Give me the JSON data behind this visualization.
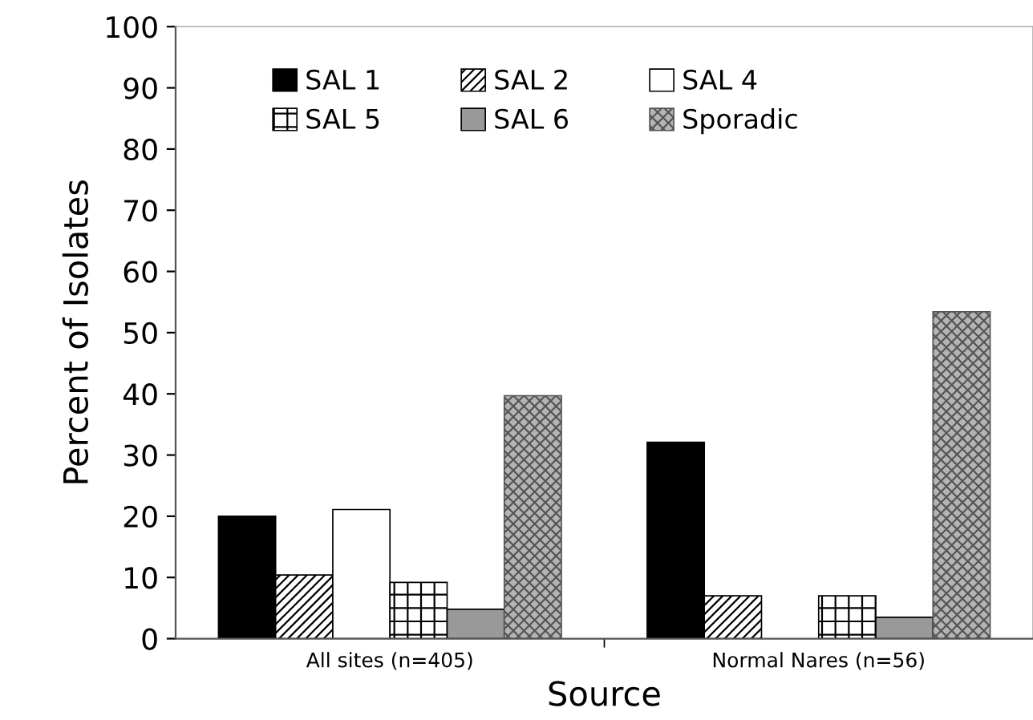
{
  "chart_data": {
    "type": "bar",
    "xlabel": "Source",
    "ylabel": "Percent of Isolates",
    "categories": [
      "All sites (n=405)",
      "Normal Nares (n=56)"
    ],
    "series": [
      {
        "name": "SAL 1",
        "color": "#000000",
        "values": [
          20.0,
          32.1
        ]
      },
      {
        "name": "SAL 2",
        "color": "#000000",
        "values": [
          10.4,
          7.0
        ]
      },
      {
        "name": "SAL 4",
        "color": "#ffffff",
        "values": [
          21.1,
          0
        ]
      },
      {
        "name": "SAL 5",
        "color": "#000000",
        "values": [
          9.2,
          7.0
        ]
      },
      {
        "name": "SAL 6",
        "color": "#999999",
        "values": [
          4.8,
          3.5
        ]
      },
      {
        "name": "Sporadic",
        "color": "#555555",
        "values": [
          39.7,
          53.4
        ]
      }
    ],
    "ylim": [
      0,
      100
    ],
    "yticks": [
      0,
      10,
      20,
      30,
      40,
      50,
      60,
      70,
      80,
      90,
      100
    ],
    "grid": false,
    "legend": "top"
  }
}
